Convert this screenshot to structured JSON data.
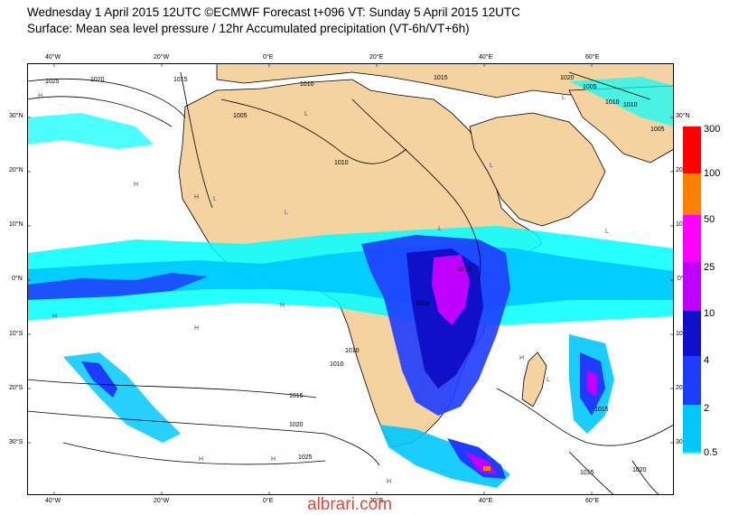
{
  "header": {
    "line1": "Wednesday 1 April 2015 12UTC ©ECMWF Forecast t+096 VT: Sunday 5 April 2015 12UTC",
    "line2": "Surface: Mean sea level pressure / 12hr Accumulated precipitation (VT-6h/VT+6h)"
  },
  "axes": {
    "top_lon": [
      "40°W",
      "20°W",
      "0°E",
      "20°E",
      "40°E",
      "60°E"
    ],
    "bottom_lon": [
      "40°W",
      "20°W",
      "0°E",
      "20°E",
      "40°E",
      "60°E"
    ],
    "left_lat": [
      "30°N",
      "20°N",
      "10°N",
      "0°N",
      "10°S",
      "20°S",
      "30°S"
    ],
    "right_lat": [
      "30°N",
      "20°N",
      "10°N",
      "0°N",
      "10°S",
      "20°S",
      "30°S"
    ]
  },
  "colorbar": {
    "labels": [
      "300",
      "100",
      "50",
      "25",
      "10",
      "4",
      "2",
      "0.5"
    ],
    "colors": [
      "#ff0000",
      "#ff8000",
      "#ff00ff",
      "#c000ff",
      "#1010c8",
      "#1e3cff",
      "#00c8ff",
      "#00ffff"
    ]
  },
  "isobars": {
    "labels": [
      "1025",
      "1020",
      "1015",
      "1010",
      "1005",
      "1010",
      "1015",
      "1020",
      "1005",
      "1010",
      "1010",
      "1010",
      "1010",
      "1015",
      "1020",
      "1025",
      "1015",
      "1010",
      "1005",
      "1020",
      "1015",
      "1010"
    ]
  },
  "pressure_centres": {
    "high": "H",
    "low": "L"
  },
  "watermark": "albrari.com"
}
